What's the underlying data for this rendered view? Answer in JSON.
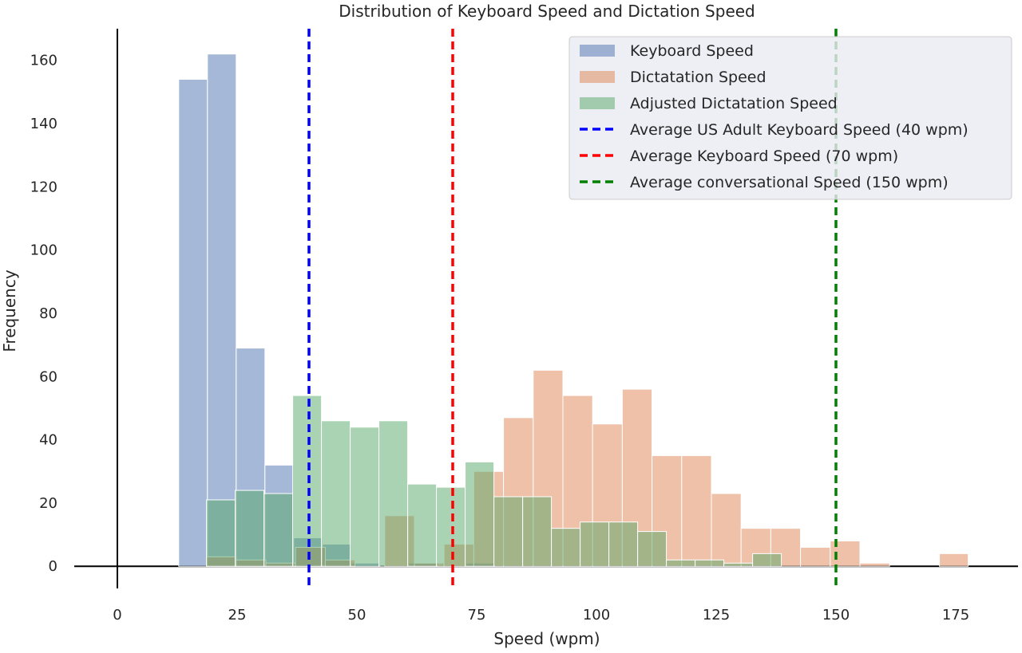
{
  "chart_data": {
    "type": "bar",
    "title": "Distribution of Keyboard Speed and Dictation Speed",
    "xlabel": "Speed (wpm)",
    "ylabel": "Frequency",
    "xlim": [
      -9,
      188
    ],
    "ylim": [
      -7,
      170
    ],
    "x_ticks": [
      0,
      25,
      50,
      75,
      100,
      125,
      150,
      175
    ],
    "y_ticks": [
      0,
      20,
      40,
      60,
      80,
      100,
      120,
      140,
      160
    ],
    "grid": false,
    "legend_position": "top-right",
    "series": [
      {
        "name": "Keyboard Speed",
        "kind": "histogram",
        "color": "#4c72b0",
        "alpha": 0.5,
        "bins": [
          {
            "x0": 12.8,
            "x1": 18.8,
            "count": 154
          },
          {
            "x0": 18.8,
            "x1": 24.8,
            "count": 162
          },
          {
            "x0": 24.8,
            "x1": 30.8,
            "count": 69
          },
          {
            "x0": 30.8,
            "x1": 36.8,
            "count": 32
          },
          {
            "x0": 36.8,
            "x1": 42.8,
            "count": 9
          },
          {
            "x0": 42.8,
            "x1": 48.8,
            "count": 7
          },
          {
            "x0": 48.8,
            "x1": 54.8,
            "count": 1
          },
          {
            "x0": 54.8,
            "x1": 60.8,
            "count": 0
          },
          {
            "x0": 60.8,
            "x1": 66.8,
            "count": 1
          },
          {
            "x0": 66.8,
            "x1": 72.8,
            "count": 0
          },
          {
            "x0": 72.8,
            "x1": 78.8,
            "count": 1
          }
        ]
      },
      {
        "name": "Dictatation Speed",
        "kind": "histogram",
        "color": "#dd8452",
        "alpha": 0.5,
        "bins": [
          {
            "x0": 18.6,
            "x1": 24.8,
            "count": 3
          },
          {
            "x0": 24.8,
            "x1": 31.0,
            "count": 2
          },
          {
            "x0": 31.0,
            "x1": 37.2,
            "count": 1
          },
          {
            "x0": 37.2,
            "x1": 43.4,
            "count": 6
          },
          {
            "x0": 43.4,
            "x1": 49.6,
            "count": 2
          },
          {
            "x0": 49.6,
            "x1": 55.8,
            "count": 0
          },
          {
            "x0": 55.8,
            "x1": 62.0,
            "count": 16
          },
          {
            "x0": 62.0,
            "x1": 68.2,
            "count": 1
          },
          {
            "x0": 68.2,
            "x1": 74.4,
            "count": 7
          },
          {
            "x0": 74.4,
            "x1": 80.6,
            "count": 30
          },
          {
            "x0": 80.6,
            "x1": 86.8,
            "count": 47
          },
          {
            "x0": 86.8,
            "x1": 93.0,
            "count": 62
          },
          {
            "x0": 93.0,
            "x1": 99.2,
            "count": 54
          },
          {
            "x0": 99.2,
            "x1": 105.4,
            "count": 45
          },
          {
            "x0": 105.4,
            "x1": 111.6,
            "count": 56
          },
          {
            "x0": 111.6,
            "x1": 117.8,
            "count": 35
          },
          {
            "x0": 117.8,
            "x1": 124.0,
            "count": 35
          },
          {
            "x0": 124.0,
            "x1": 130.2,
            "count": 23
          },
          {
            "x0": 130.2,
            "x1": 136.4,
            "count": 12
          },
          {
            "x0": 136.4,
            "x1": 142.6,
            "count": 12
          },
          {
            "x0": 142.6,
            "x1": 148.8,
            "count": 6
          },
          {
            "x0": 148.8,
            "x1": 155.0,
            "count": 8
          },
          {
            "x0": 155.0,
            "x1": 161.2,
            "count": 1
          },
          {
            "x0": 171.6,
            "x1": 177.6,
            "count": 4
          }
        ]
      },
      {
        "name": "Adjusted Dictatation Speed",
        "kind": "histogram",
        "color": "#55a868",
        "alpha": 0.5,
        "bins": [
          {
            "x0": 18.6,
            "x1": 24.6,
            "count": 21
          },
          {
            "x0": 24.6,
            "x1": 30.6,
            "count": 24
          },
          {
            "x0": 30.6,
            "x1": 36.6,
            "count": 23
          },
          {
            "x0": 36.6,
            "x1": 42.6,
            "count": 54
          },
          {
            "x0": 42.6,
            "x1": 48.6,
            "count": 46
          },
          {
            "x0": 48.6,
            "x1": 54.6,
            "count": 44
          },
          {
            "x0": 54.6,
            "x1": 60.6,
            "count": 46
          },
          {
            "x0": 60.6,
            "x1": 66.6,
            "count": 26
          },
          {
            "x0": 66.6,
            "x1": 72.6,
            "count": 25
          },
          {
            "x0": 72.6,
            "x1": 78.6,
            "count": 33
          },
          {
            "x0": 78.6,
            "x1": 84.6,
            "count": 22
          },
          {
            "x0": 84.6,
            "x1": 90.6,
            "count": 22
          },
          {
            "x0": 90.6,
            "x1": 96.6,
            "count": 12
          },
          {
            "x0": 96.6,
            "x1": 102.6,
            "count": 14
          },
          {
            "x0": 102.6,
            "x1": 108.6,
            "count": 14
          },
          {
            "x0": 108.6,
            "x1": 114.6,
            "count": 11
          },
          {
            "x0": 114.6,
            "x1": 120.6,
            "count": 2
          },
          {
            "x0": 120.6,
            "x1": 126.6,
            "count": 2
          },
          {
            "x0": 126.6,
            "x1": 132.6,
            "count": 1
          },
          {
            "x0": 132.6,
            "x1": 138.6,
            "count": 4
          }
        ]
      }
    ],
    "reference_lines": [
      {
        "name": "Average US Adult Keyboard Speed (40 wpm)",
        "x": 40,
        "color": "#0000ff",
        "style": "dashed"
      },
      {
        "name": "Average Keyboard Speed (70 wpm)",
        "x": 70,
        "color": "#ff0000",
        "style": "dashed"
      },
      {
        "name": "Average conversational Speed (150 wpm)",
        "x": 150,
        "color": "#008000",
        "style": "dashed"
      }
    ]
  }
}
